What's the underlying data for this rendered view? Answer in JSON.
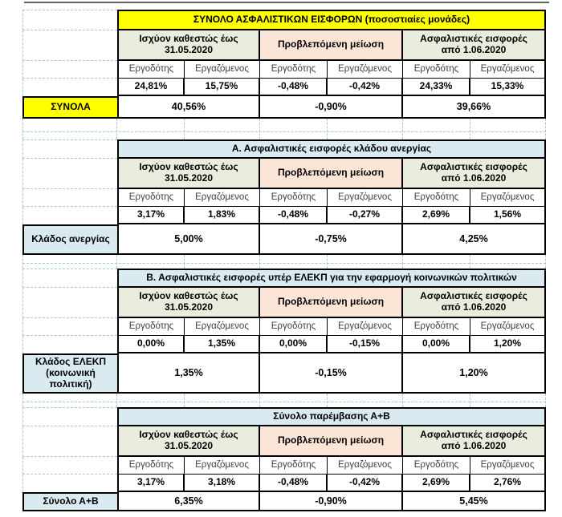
{
  "columns": {
    "groups": [
      "Ισχύον καθεστώς έως 31.05.2020",
      "Προβλεπόμενη μείωση",
      "Ασφαλιστικές εισφορές από 1.06.2020"
    ],
    "subheaders": [
      "Εργοδότης",
      "Εργαζόμενος"
    ]
  },
  "sections": [
    {
      "title": "ΣΥΝΟΛΟ ΑΣΦΑΛΙΣΤΙΚΩΝ ΕΙΣΦΟΡΩΝ (ποσοστιαίες μονάδες)",
      "label": "ΣΥΝΟΛΑ",
      "values": [
        "24,81%",
        "15,75%",
        "-0,48%",
        "-0,42%",
        "24,33%",
        "15,33%"
      ],
      "totals": [
        "40,56%",
        "-0,90%",
        "39,66%"
      ]
    },
    {
      "title": "Α. Ασφαλιστικές εισφορές κλάδου ανεργίας",
      "label": "Κλάδος ανεργίας",
      "values": [
        "3,17%",
        "1,83%",
        "-0,48%",
        "-0,27%",
        "2,69%",
        "1,56%"
      ],
      "totals": [
        "5,00%",
        "-0,75%",
        "4,25%"
      ]
    },
    {
      "title": "Β. Ασφαλιστικές εισφορές υπέρ ΕΛΕΚΠ για την εφαρμογή κοινωνικών πολιτικών",
      "label": "Κλάδος ΕΛΕΚΠ (κοινωνική πολιτική)",
      "values": [
        "0,00%",
        "1,35%",
        "0,00%",
        "-0,15%",
        "0,00%",
        "1,20%"
      ],
      "totals": [
        "1,35%",
        "-0,15%",
        "1,20%"
      ]
    },
    {
      "title": "Σύνολο παρέμβασης Α+Β",
      "label": "Σύνολο Α+Β",
      "values": [
        "3,17%",
        "3,18%",
        "-0,48%",
        "-0,42%",
        "2,69%",
        "2,76%"
      ],
      "totals": [
        "6,35%",
        "-0,90%",
        "5,45%"
      ]
    }
  ],
  "colors": {
    "title_yellow": "#FFFF00",
    "section_blue": "#D9EAF1",
    "group_green": "#EAEDDE",
    "group_pink": "#FBE5D6",
    "gridline_dashed": "#A8C6DF",
    "border_black": "#000000"
  }
}
